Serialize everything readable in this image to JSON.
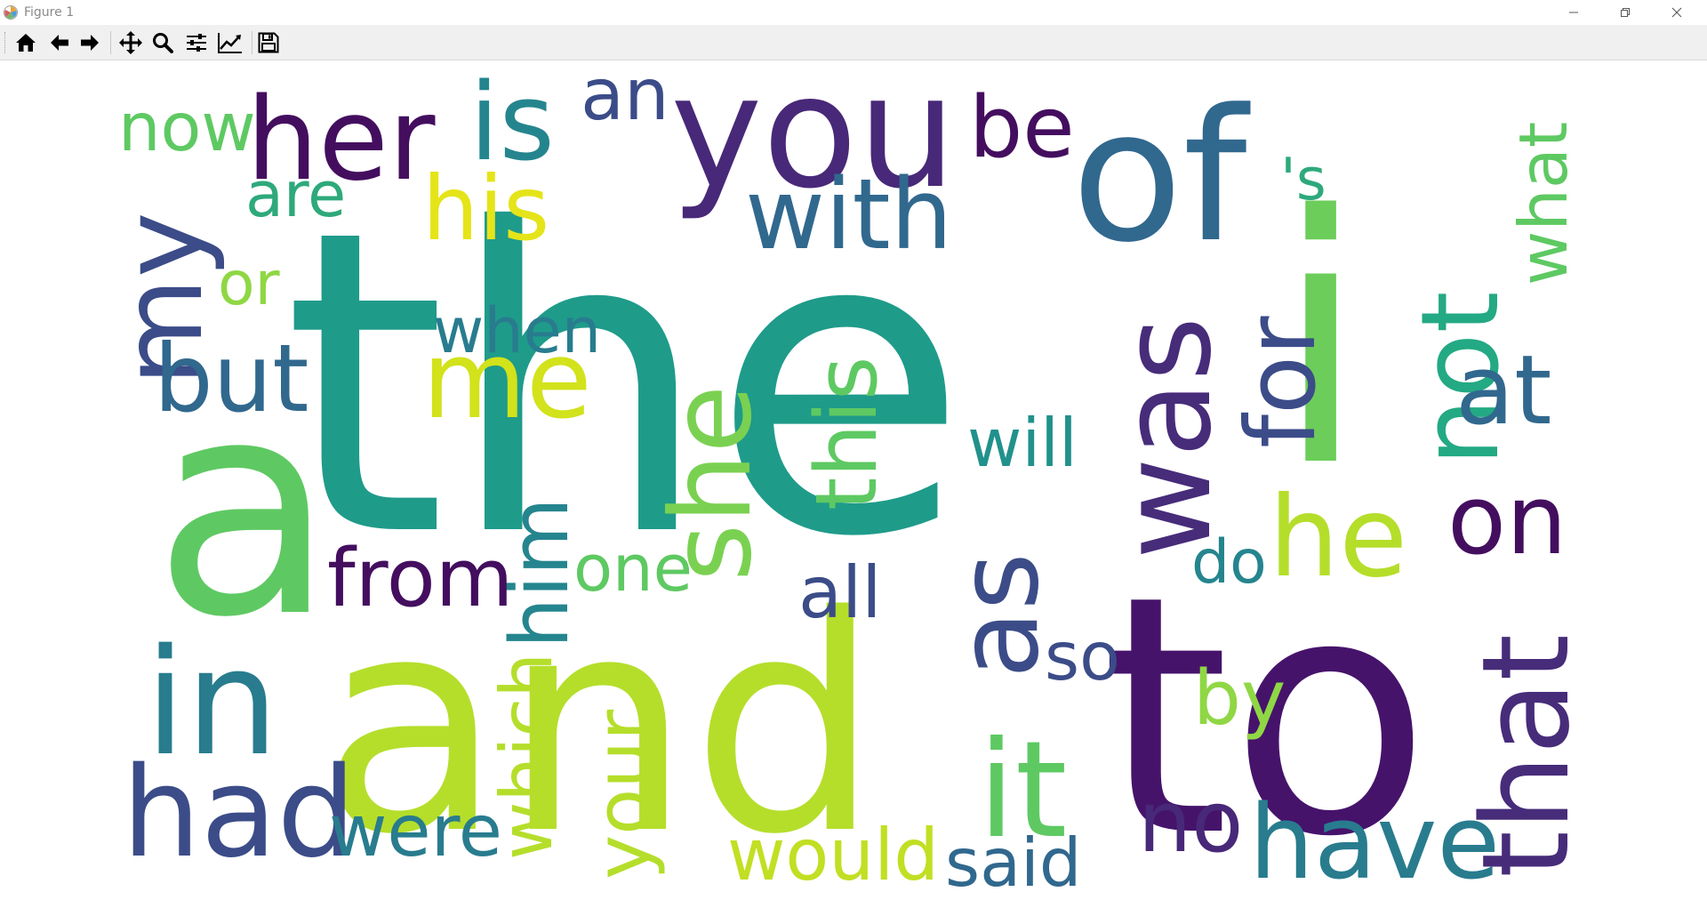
{
  "window": {
    "title": "Figure 1",
    "controls": {
      "minimize_icon": "minimize-icon",
      "maximize_icon": "restore-icon",
      "close_icon": "close-icon"
    }
  },
  "toolbar": {
    "buttons": [
      {
        "name": "home-button",
        "icon": "home-icon"
      },
      {
        "name": "back-button",
        "icon": "arrow-left-icon"
      },
      {
        "name": "forward-button",
        "icon": "arrow-right-icon"
      },
      {
        "name": "pan-button",
        "icon": "move-icon"
      },
      {
        "name": "zoom-button",
        "icon": "magnifier-icon"
      },
      {
        "name": "configure-subplots-button",
        "icon": "sliders-icon"
      },
      {
        "name": "edit-axis-button",
        "icon": "line-chart-icon"
      },
      {
        "name": "save-button",
        "icon": "floppy-disk-icon"
      }
    ]
  },
  "wordcloud": {
    "colors": {
      "dark_purple": "#440e5f",
      "purple": "#472c7a",
      "indigo": "#3b4c88",
      "blue": "#31688e",
      "teal_blue": "#287c8e",
      "teal": "#21918c",
      "teal_green": "#1fa088",
      "green": "#35b779",
      "light_green": "#5ec962",
      "yellow_green": "#b5de2b",
      "yellow": "#e5e419"
    },
    "words": [
      {
        "text": "the",
        "color": "#1f9b8a"
      },
      {
        "text": "and",
        "color": "#b5de2b"
      },
      {
        "text": "to",
        "color": "#46136b"
      },
      {
        "text": "a",
        "color": "#5ec962"
      },
      {
        "text": "of",
        "color": "#31688e"
      },
      {
        "text": "i",
        "color": "#6ccd5a"
      },
      {
        "text": "you",
        "color": "#482878"
      },
      {
        "text": "her",
        "color": "#440e5f"
      },
      {
        "text": "is",
        "color": "#25858e"
      },
      {
        "text": "an",
        "color": "#3b4c88"
      },
      {
        "text": "be",
        "color": "#440e5f"
      },
      {
        "text": "now",
        "color": "#5ec962"
      },
      {
        "text": "my",
        "color": "#3b4c88"
      },
      {
        "text": "his",
        "color": "#e5e419"
      },
      {
        "text": "are",
        "color": "#2ea97c"
      },
      {
        "text": "with",
        "color": "#31688e"
      },
      {
        "text": "'s",
        "color": "#2ea97c"
      },
      {
        "text": "not",
        "color": "#23a983"
      },
      {
        "text": "what",
        "color": "#5ec962"
      },
      {
        "text": "or",
        "color": "#8fd744"
      },
      {
        "text": "when",
        "color": "#287c8e"
      },
      {
        "text": "me",
        "color": "#d2e21b"
      },
      {
        "text": "but",
        "color": "#31688e"
      },
      {
        "text": "was",
        "color": "#472c7a"
      },
      {
        "text": "for",
        "color": "#3b4c88"
      },
      {
        "text": "at",
        "color": "#31688e"
      },
      {
        "text": "she",
        "color": "#7ad151"
      },
      {
        "text": "this",
        "color": "#5ec962"
      },
      {
        "text": "will",
        "color": "#21918c"
      },
      {
        "text": "him",
        "color": "#25858e"
      },
      {
        "text": "from",
        "color": "#440e5f"
      },
      {
        "text": "one",
        "color": "#5ec962"
      },
      {
        "text": "all",
        "color": "#3b4c88"
      },
      {
        "text": "do",
        "color": "#25858e"
      },
      {
        "text": "he",
        "color": "#b5de2b"
      },
      {
        "text": "on",
        "color": "#440e5f"
      },
      {
        "text": "as",
        "color": "#3b4c88"
      },
      {
        "text": "in",
        "color": "#287c8e"
      },
      {
        "text": "so",
        "color": "#3b4c88"
      },
      {
        "text": "by",
        "color": "#8fd744"
      },
      {
        "text": "that",
        "color": "#472c7a"
      },
      {
        "text": "which",
        "color": "#b5de2b"
      },
      {
        "text": "your",
        "color": "#b5de2b"
      },
      {
        "text": "it",
        "color": "#5ec962"
      },
      {
        "text": "had",
        "color": "#3b4c88"
      },
      {
        "text": "were",
        "color": "#287c8e"
      },
      {
        "text": "would",
        "color": "#c2df23"
      },
      {
        "text": "said",
        "color": "#31688e"
      },
      {
        "text": "no",
        "color": "#482878"
      },
      {
        "text": "have",
        "color": "#287c8e"
      }
    ]
  }
}
